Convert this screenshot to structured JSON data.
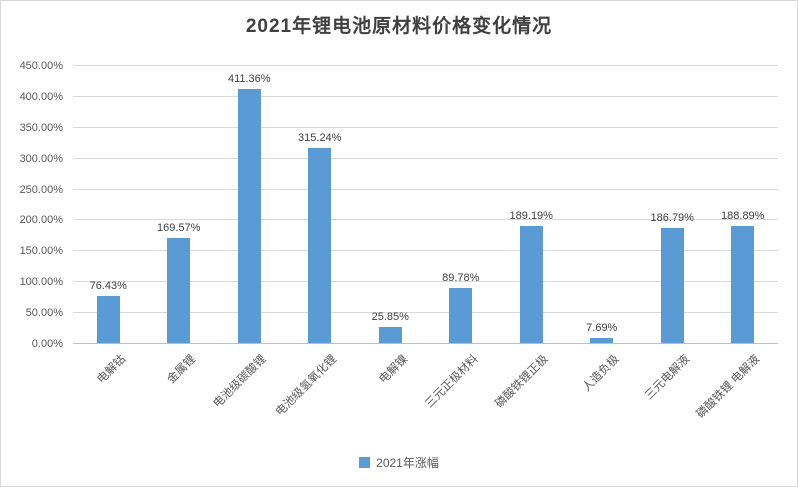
{
  "title": "2021年锂电池原材料价格变化情况",
  "legend": {
    "label": "2021年涨幅"
  },
  "colors": {
    "bar": "#5B9BD5",
    "gridline": "#D9D9D9",
    "axis_line": "#C0C0C0",
    "axis_text": "#595959",
    "data_label_text": "#404040",
    "title_text": "#404040",
    "border": "#D9D9D9",
    "background": "#FFFFFF"
  },
  "chart_data": {
    "type": "bar",
    "title": "2021年锂电池原材料价格变化情况",
    "categories": [
      "电解钴",
      "金属锂",
      "电池级碳酸锂",
      "电池级氢氧化锂",
      "电解镍",
      "三元正极材料",
      "磷酸铁锂正极",
      "人造负极",
      "三元电解液",
      "磷酸铁锂 电解液"
    ],
    "series": [
      {
        "name": "2021年涨幅",
        "values": [
          76.43,
          169.57,
          411.36,
          315.24,
          25.85,
          89.78,
          189.19,
          7.69,
          186.79,
          188.89
        ]
      }
    ],
    "data_labels": [
      "76.43%",
      "169.57%",
      "411.36%",
      "315.24%",
      "25.85%",
      "89.78%",
      "189.19%",
      "7.69%",
      "186.79%",
      "188.89%"
    ],
    "xlabel": "",
    "ylabel": "",
    "ylim": [
      0,
      450
    ],
    "ytick_step": 50,
    "ytick_labels": [
      "0.00%",
      "50.00%",
      "100.00%",
      "150.00%",
      "200.00%",
      "250.00%",
      "300.00%",
      "350.00%",
      "400.00%",
      "450.00%"
    ],
    "grid": true,
    "legend_position": "bottom"
  }
}
